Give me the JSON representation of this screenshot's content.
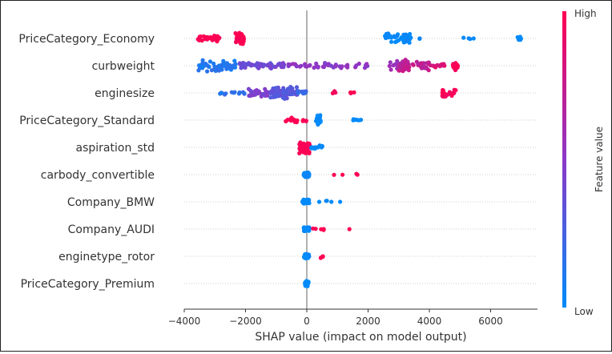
{
  "chart_data": {
    "type": "scatter",
    "subtype": "shap-beeswarm",
    "title": "",
    "xlabel": "SHAP value (impact on model output)",
    "ylabel": "",
    "xlim": [
      -4000,
      7300
    ],
    "xticks": [
      -4000,
      -2000,
      0,
      2000,
      4000,
      6000
    ],
    "grid": "horizontal-dotted",
    "colorbar": {
      "label": "Feature value",
      "high": "High",
      "low": "Low",
      "placement": "right"
    },
    "colors": {
      "high": "#ff0052",
      "mid": "#8c38c8",
      "low": "#008bfb",
      "zero_line": "#999999",
      "grid": "#cccccc"
    },
    "features": [
      {
        "name": "PriceCategory_Economy",
        "clusters": [
          {
            "x0": -3550,
            "x1": -2850,
            "n": 34,
            "c": 1.0,
            "sp": 0.6
          },
          {
            "x0": -2350,
            "x1": -2050,
            "n": 40,
            "c": 1.0,
            "sp": 1.0
          },
          {
            "x0": 2550,
            "x1": 3400,
            "n": 42,
            "c": 0.0,
            "sp": 0.8
          },
          {
            "x0": 3600,
            "x1": 3700,
            "n": 2,
            "c": 0.0,
            "sp": 0.2
          },
          {
            "x0": 5100,
            "x1": 5500,
            "n": 4,
            "c": 0.0,
            "sp": 0.2
          },
          {
            "x0": 6850,
            "x1": 7050,
            "n": 8,
            "c": 0.0,
            "sp": 0.4
          }
        ]
      },
      {
        "name": "curbweight",
        "clusters": [
          {
            "x0": -3550,
            "x1": -2300,
            "n": 60,
            "c": 0.12,
            "sp": 1.0
          },
          {
            "x0": -2200,
            "x1": -700,
            "n": 55,
            "c": 0.4,
            "sp": 0.5
          },
          {
            "x0": -600,
            "x1": 2000,
            "n": 50,
            "c": 0.5,
            "sp": 0.5
          },
          {
            "x0": 2600,
            "x1": 3300,
            "n": 28,
            "c": 0.55,
            "sp": 0.8
          },
          {
            "x0": 3000,
            "x1": 4000,
            "n": 55,
            "c": 0.72,
            "sp": 1.0
          },
          {
            "x0": 4000,
            "x1": 4500,
            "n": 14,
            "c": 0.85,
            "sp": 0.4
          },
          {
            "x0": 4750,
            "x1": 4950,
            "n": 22,
            "c": 0.97,
            "sp": 0.8
          }
        ]
      },
      {
        "name": "enginesize",
        "clusters": [
          {
            "x0": -2900,
            "x1": -1900,
            "n": 14,
            "c": 0.15,
            "sp": 0.3
          },
          {
            "x0": -1900,
            "x1": -1250,
            "n": 35,
            "c": 0.45,
            "sp": 0.8
          },
          {
            "x0": -1200,
            "x1": -300,
            "n": 75,
            "c": 0.32,
            "sp": 1.0
          },
          {
            "x0": -300,
            "x1": 0,
            "n": 12,
            "c": 0.2,
            "sp": 0.4
          },
          {
            "x0": 800,
            "x1": 1050,
            "n": 3,
            "c": 0.95,
            "sp": 0.3
          },
          {
            "x0": 1300,
            "x1": 1550,
            "n": 4,
            "c": 0.97,
            "sp": 0.3
          },
          {
            "x0": 4400,
            "x1": 4900,
            "n": 20,
            "c": 0.97,
            "sp": 0.8
          }
        ]
      },
      {
        "name": "PriceCategory_Standard",
        "clusters": [
          {
            "x0": -700,
            "x1": -300,
            "n": 16,
            "c": 1.0,
            "sp": 0.5
          },
          {
            "x0": -150,
            "x1": 0,
            "n": 4,
            "c": 1.0,
            "sp": 0.3
          },
          {
            "x0": 300,
            "x1": 450,
            "n": 34,
            "c": 0.0,
            "sp": 0.8
          },
          {
            "x0": 1500,
            "x1": 1800,
            "n": 7,
            "c": 0.0,
            "sp": 0.3
          }
        ]
      },
      {
        "name": "aspiration_std",
        "clusters": [
          {
            "x0": -250,
            "x1": 100,
            "n": 55,
            "c": 1.0,
            "sp": 1.0
          },
          {
            "x0": 100,
            "x1": 520,
            "n": 14,
            "c": 0.0,
            "sp": 0.5
          }
        ]
      },
      {
        "name": "carbody_convertible",
        "clusters": [
          {
            "x0": -100,
            "x1": 80,
            "n": 50,
            "c": 0.0,
            "sp": 0.4
          },
          {
            "x0": 450,
            "x1": 2000,
            "n": 4,
            "c": 1.0,
            "sp": 0.2
          }
        ]
      },
      {
        "name": "Company_BMW",
        "clusters": [
          {
            "x0": -150,
            "x1": 80,
            "n": 45,
            "c": 0.0,
            "sp": 0.4
          },
          {
            "x0": 350,
            "x1": 1300,
            "n": 5,
            "c": 0.0,
            "sp": 0.2
          }
        ]
      },
      {
        "name": "Company_AUDI",
        "clusters": [
          {
            "x0": -100,
            "x1": 80,
            "n": 45,
            "c": 0.0,
            "sp": 0.4
          },
          {
            "x0": 200,
            "x1": 600,
            "n": 6,
            "c": 1.0,
            "sp": 0.3
          },
          {
            "x0": 1350,
            "x1": 1400,
            "n": 1,
            "c": 1.0,
            "sp": 0.1
          }
        ]
      },
      {
        "name": "enginetype_rotor",
        "clusters": [
          {
            "x0": -100,
            "x1": 80,
            "n": 45,
            "c": 0.0,
            "sp": 0.4
          },
          {
            "x0": 400,
            "x1": 550,
            "n": 4,
            "c": 1.0,
            "sp": 0.3
          }
        ]
      },
      {
        "name": "PriceCategory_Premium",
        "clusters": [
          {
            "x0": -60,
            "x1": 60,
            "n": 40,
            "c": 0.0,
            "sp": 0.5
          }
        ]
      }
    ]
  }
}
